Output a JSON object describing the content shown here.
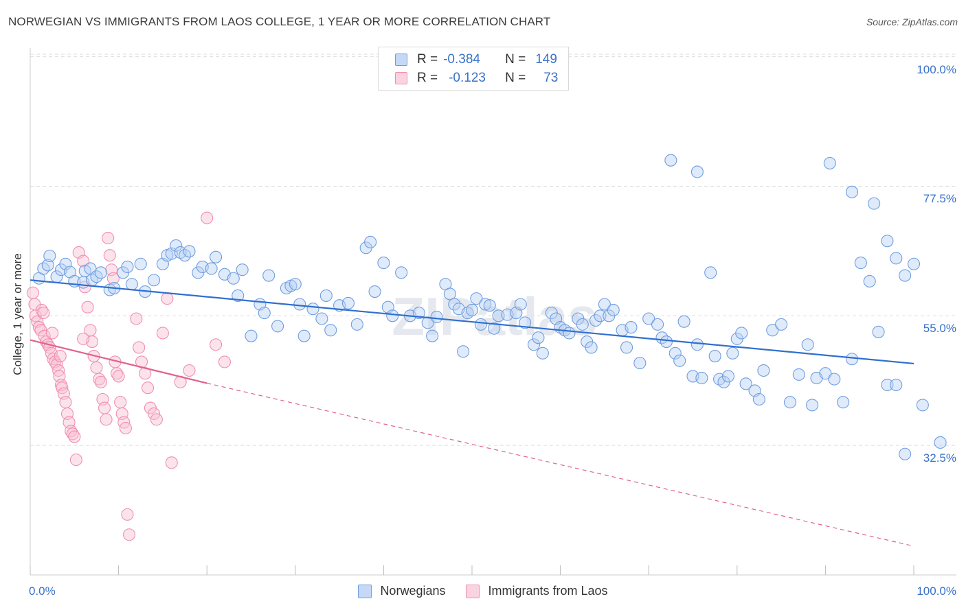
{
  "title": "NORWEGIAN VS IMMIGRANTS FROM LAOS COLLEGE, 1 YEAR OR MORE CORRELATION CHART",
  "source": "Source: ZipAtlas.com",
  "watermark": "ZIPatlas",
  "legend": {
    "rows": [
      {
        "r_label": "R =",
        "r_value": "-0.384",
        "n_label": "N =",
        "n_value": "149"
      },
      {
        "r_label": "R =",
        "r_value": "-0.123",
        "n_label": "N =",
        "n_value": "73"
      }
    ]
  },
  "bottom_legend": {
    "series1": "Norwegians",
    "series2": "Immigrants from Laos"
  },
  "chart_data": {
    "type": "scatter",
    "title": "NORWEGIAN VS IMMIGRANTS FROM LAOS COLLEGE, 1 YEAR OR MORE CORRELATION CHART",
    "xlabel": "",
    "ylabel": "College, 1 year or more",
    "xlim": [
      0,
      100
    ],
    "ylim": [
      10,
      101.5
    ],
    "x_tick_labels": [
      "0.0%",
      "100.0%"
    ],
    "y_ticks": [
      32.5,
      55.0,
      77.5,
      100.0
    ],
    "y_tick_labels": [
      "32.5%",
      "55.0%",
      "77.5%",
      "100.0%"
    ],
    "grid": true,
    "legend_position": "top-center",
    "colors": {
      "norwegians": "#6f9ee0",
      "laos": "#f08fb0",
      "blue_line": "#2f6fcf",
      "pink_line": "#e0628f"
    },
    "series": [
      {
        "name": "Norwegians",
        "r": -0.384,
        "n": 149,
        "trend": {
          "x": [
            0,
            100
          ],
          "y": [
            61.2,
            46.7
          ]
        },
        "points": [
          [
            1,
            61.5
          ],
          [
            1.5,
            63.2
          ],
          [
            2,
            63.8
          ],
          [
            2.2,
            65.4
          ],
          [
            3,
            61.8
          ],
          [
            3.5,
            63.0
          ],
          [
            4,
            64.0
          ],
          [
            4.5,
            62.6
          ],
          [
            5,
            61.0
          ],
          [
            6,
            60.8
          ],
          [
            6.2,
            62.8
          ],
          [
            6.8,
            63.2
          ],
          [
            7,
            61.2
          ],
          [
            7.5,
            61.8
          ],
          [
            8,
            62.5
          ],
          [
            9,
            59.5
          ],
          [
            9.5,
            59.8
          ],
          [
            10.5,
            62.5
          ],
          [
            11,
            63.5
          ],
          [
            11.5,
            60.5
          ],
          [
            12.5,
            64.0
          ],
          [
            13,
            59.2
          ],
          [
            14,
            61.2
          ],
          [
            15,
            64.0
          ],
          [
            15.5,
            65.5
          ],
          [
            16,
            65.8
          ],
          [
            16.5,
            67.2
          ],
          [
            17,
            66.0
          ],
          [
            17.5,
            65.5
          ],
          [
            18,
            66.2
          ],
          [
            19,
            62.5
          ],
          [
            19.5,
            63.5
          ],
          [
            20.5,
            63.2
          ],
          [
            21,
            65.2
          ],
          [
            22,
            62.2
          ],
          [
            23,
            61.5
          ],
          [
            23.5,
            58.5
          ],
          [
            24,
            63.0
          ],
          [
            25,
            51.5
          ],
          [
            26,
            57.0
          ],
          [
            26.5,
            55.5
          ],
          [
            27,
            62.0
          ],
          [
            28,
            53.2
          ],
          [
            29,
            59.8
          ],
          [
            29.5,
            60.2
          ],
          [
            30,
            60.5
          ],
          [
            30.5,
            57.0
          ],
          [
            31,
            51.5
          ],
          [
            32,
            56.2
          ],
          [
            33,
            54.5
          ],
          [
            33.5,
            58.5
          ],
          [
            34,
            52.5
          ],
          [
            35,
            56.8
          ],
          [
            36,
            57.2
          ],
          [
            37,
            53.5
          ],
          [
            38,
            66.8
          ],
          [
            38.5,
            67.8
          ],
          [
            39,
            59.2
          ],
          [
            40,
            64.2
          ],
          [
            40.5,
            56.5
          ],
          [
            41,
            55.0
          ],
          [
            42,
            62.5
          ],
          [
            43,
            55.0
          ],
          [
            44,
            55.5
          ],
          [
            45,
            53.8
          ],
          [
            45.5,
            51.5
          ],
          [
            46,
            54.8
          ],
          [
            47,
            60.5
          ],
          [
            47.5,
            58.8
          ],
          [
            48,
            57.0
          ],
          [
            48.5,
            56.2
          ],
          [
            49,
            48.8
          ],
          [
            49.5,
            55.5
          ],
          [
            50,
            56.0
          ],
          [
            50.5,
            58.0
          ],
          [
            51,
            53.5
          ],
          [
            51.5,
            57.0
          ],
          [
            52,
            56.8
          ],
          [
            52.5,
            52.8
          ],
          [
            53,
            55.0
          ],
          [
            54,
            55.2
          ],
          [
            55,
            55.5
          ],
          [
            55.5,
            57.0
          ],
          [
            56,
            53.8
          ],
          [
            57,
            50.0
          ],
          [
            57.5,
            51.2
          ],
          [
            58,
            48.5
          ],
          [
            59,
            55.5
          ],
          [
            59.5,
            54.5
          ],
          [
            60,
            53.0
          ],
          [
            60.5,
            52.5
          ],
          [
            61,
            52.0
          ],
          [
            62,
            54.5
          ],
          [
            62.5,
            53.5
          ],
          [
            63,
            50.5
          ],
          [
            63.5,
            49.5
          ],
          [
            64,
            54.2
          ],
          [
            64.5,
            55.0
          ],
          [
            65,
            57.0
          ],
          [
            65.5,
            55.0
          ],
          [
            66,
            56.0
          ],
          [
            67,
            52.5
          ],
          [
            67.5,
            49.5
          ],
          [
            68,
            53.0
          ],
          [
            69,
            46.8
          ],
          [
            70,
            54.5
          ],
          [
            71,
            53.5
          ],
          [
            71.5,
            51.2
          ],
          [
            72,
            50.5
          ],
          [
            73,
            48.5
          ],
          [
            73.5,
            47.2
          ],
          [
            74,
            54.0
          ],
          [
            75,
            44.5
          ],
          [
            75.5,
            50.0
          ],
          [
            76,
            44.2
          ],
          [
            77,
            62.5
          ],
          [
            77.5,
            48.0
          ],
          [
            78,
            44.0
          ],
          [
            78.5,
            43.5
          ],
          [
            79,
            44.5
          ],
          [
            79.5,
            48.5
          ],
          [
            80,
            51.0
          ],
          [
            80.5,
            52.0
          ],
          [
            81,
            43.2
          ],
          [
            82,
            42.0
          ],
          [
            82.5,
            40.5
          ],
          [
            83,
            45.5
          ],
          [
            84,
            52.5
          ],
          [
            85,
            53.5
          ],
          [
            86,
            40.0
          ],
          [
            87,
            44.8
          ],
          [
            88,
            50.0
          ],
          [
            88.5,
            39.5
          ],
          [
            89,
            44.2
          ],
          [
            90,
            45.0
          ],
          [
            91,
            44.0
          ],
          [
            92,
            40.0
          ],
          [
            93,
            47.5
          ],
          [
            94,
            64.2
          ],
          [
            95,
            61.0
          ],
          [
            96,
            52.2
          ],
          [
            97,
            68.0
          ],
          [
            98,
            65.0
          ],
          [
            99,
            62.0
          ],
          [
            100,
            64.0
          ],
          [
            95.5,
            74.5
          ],
          [
            72.5,
            82.0
          ],
          [
            75.5,
            80.0
          ],
          [
            90.5,
            81.5
          ],
          [
            93,
            76.5
          ],
          [
            97,
            43.0
          ],
          [
            98,
            43.0
          ],
          [
            101,
            39.5
          ],
          [
            103,
            33.0
          ],
          [
            99,
            31.0
          ]
        ]
      },
      {
        "name": "Immigrants from Laos",
        "r": -0.123,
        "n": 73,
        "trend": {
          "x": [
            0,
            20
          ],
          "y": [
            50.8,
            43.3
          ]
        },
        "trend_dashed": {
          "x": [
            20,
            100
          ],
          "y": [
            43.3,
            15.0
          ]
        },
        "points": [
          [
            0.3,
            59.0
          ],
          [
            0.5,
            57.0
          ],
          [
            0.6,
            55.0
          ],
          [
            0.8,
            54.0
          ],
          [
            1.0,
            53.0
          ],
          [
            1.2,
            52.5
          ],
          [
            1.3,
            56.0
          ],
          [
            1.5,
            55.5
          ],
          [
            1.6,
            51.5
          ],
          [
            1.8,
            50.5
          ],
          [
            2.0,
            50.0
          ],
          [
            2.2,
            49.5
          ],
          [
            2.4,
            48.5
          ],
          [
            2.5,
            52.0
          ],
          [
            2.6,
            47.5
          ],
          [
            2.8,
            47.0
          ],
          [
            3.0,
            46.5
          ],
          [
            3.2,
            45.5
          ],
          [
            3.3,
            44.5
          ],
          [
            3.4,
            48.0
          ],
          [
            3.5,
            43.0
          ],
          [
            3.6,
            42.5
          ],
          [
            3.8,
            41.5
          ],
          [
            4.0,
            40.0
          ],
          [
            4.2,
            38.0
          ],
          [
            4.4,
            36.5
          ],
          [
            4.6,
            35.0
          ],
          [
            4.8,
            34.5
          ],
          [
            5.0,
            34.0
          ],
          [
            5.2,
            30.0
          ],
          [
            5.5,
            66.0
          ],
          [
            6.0,
            64.5
          ],
          [
            6.2,
            60.0
          ],
          [
            6.5,
            56.5
          ],
          [
            6.8,
            52.5
          ],
          [
            7.0,
            50.5
          ],
          [
            7.2,
            48.0
          ],
          [
            7.5,
            46.0
          ],
          [
            7.8,
            44.0
          ],
          [
            8.0,
            43.5
          ],
          [
            8.2,
            40.5
          ],
          [
            8.4,
            39.0
          ],
          [
            8.6,
            37.0
          ],
          [
            8.8,
            68.5
          ],
          [
            9.0,
            65.5
          ],
          [
            9.2,
            63.0
          ],
          [
            9.4,
            61.5
          ],
          [
            9.6,
            47.0
          ],
          [
            9.8,
            45.0
          ],
          [
            10.0,
            44.5
          ],
          [
            10.2,
            40.0
          ],
          [
            10.4,
            38.0
          ],
          [
            10.6,
            36.5
          ],
          [
            10.8,
            35.5
          ],
          [
            11.0,
            20.5
          ],
          [
            11.2,
            17.0
          ],
          [
            12.0,
            54.5
          ],
          [
            12.3,
            49.5
          ],
          [
            12.6,
            47.0
          ],
          [
            13.0,
            45.0
          ],
          [
            13.3,
            42.5
          ],
          [
            13.6,
            39.0
          ],
          [
            14.0,
            38.0
          ],
          [
            14.3,
            37.0
          ],
          [
            15.0,
            52.0
          ],
          [
            15.5,
            58.0
          ],
          [
            16.0,
            29.5
          ],
          [
            17.0,
            43.5
          ],
          [
            18.0,
            45.5
          ],
          [
            20.0,
            72.0
          ],
          [
            21.0,
            50.0
          ],
          [
            22.0,
            47.0
          ],
          [
            6.0,
            51.0
          ]
        ]
      }
    ]
  }
}
